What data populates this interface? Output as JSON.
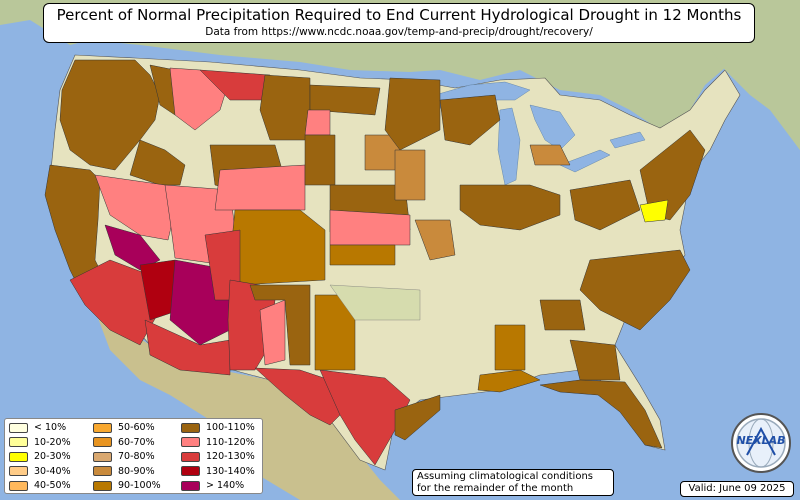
{
  "title": "Percent of Normal Precipitation Required to End Current Hydrological Drought in 12 Months",
  "subtitle": "Data from https://www.ncdc.noaa.gov/temp-and-precip/drought/recovery/",
  "legend": [
    {
      "label": "< 10%",
      "color": "#ffffe0"
    },
    {
      "label": "10-20%",
      "color": "#ffff99"
    },
    {
      "label": "20-30%",
      "color": "#ffff00"
    },
    {
      "label": "30-40%",
      "color": "#ffcc88"
    },
    {
      "label": "40-50%",
      "color": "#ffb85c"
    },
    {
      "label": "50-60%",
      "color": "#f8a830"
    },
    {
      "label": "60-70%",
      "color": "#e89420"
    },
    {
      "label": "70-80%",
      "color": "#d9a870"
    },
    {
      "label": "80-90%",
      "color": "#c98a3c"
    },
    {
      "label": "90-100%",
      "color": "#b87800"
    },
    {
      "label": "100-110%",
      "color": "#9a6410"
    },
    {
      "label": "110-120%",
      "color": "#ff8080"
    },
    {
      "label": "120-130%",
      "color": "#d83c3c"
    },
    {
      "label": "130-140%",
      "color": "#b00010"
    },
    {
      "label": "> 140%",
      "color": "#a8005a"
    }
  ],
  "note": {
    "line1": "Assuming climatological conditions",
    "line2": "for the remainder of the month"
  },
  "valid": "Valid: June 09 2025",
  "logo": "NEXLAB"
}
